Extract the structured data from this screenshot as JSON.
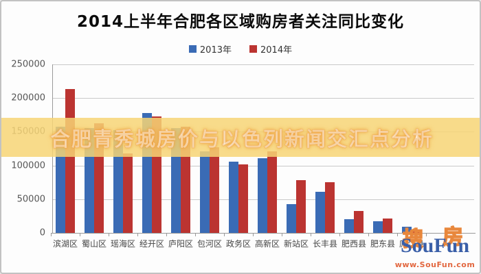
{
  "title": "2014上半年合肥各区域购房者关注同比变化",
  "overlay_banner": {
    "text": "合肥青秀城房价与以色列新闻交汇点分析"
  },
  "legend": {
    "items": [
      "2013年",
      "2014年"
    ]
  },
  "colors": {
    "series_2013": "#3a6bb5",
    "series_2014": "#bb3431",
    "banner_bg": "#f7d576",
    "banner_text": "#ffffff"
  },
  "watermark": {
    "cjk_left": "搜",
    "cjk_right": "房",
    "brand": "SouFun",
    "url": "www.SouFun.com"
  },
  "chart_data": {
    "type": "bar",
    "title": "2014上半年合肥各区域购房者关注同比变化",
    "categories": [
      "滨湖区",
      "蜀山区",
      "瑶海区",
      "经开区",
      "庐阳区",
      "包河区",
      "政务区",
      "高新区",
      "新站区",
      "长丰县",
      "肥西县",
      "肥东县",
      "庐江县"
    ],
    "series": [
      {
        "name": "2013年",
        "color": "#3a6bb5",
        "values": [
          158000,
          155000,
          152000,
          178000,
          155000,
          121000,
          106000,
          111000,
          43000,
          61000,
          20000,
          17000,
          9000
        ]
      },
      {
        "name": "2014年",
        "color": "#bb3431",
        "values": [
          213000,
          163000,
          118000,
          173000,
          158000,
          127000,
          102000,
          121000,
          78000,
          75000,
          33000,
          21000,
          5000
        ]
      }
    ],
    "xlabel": "",
    "ylabel": "",
    "ylim": [
      0,
      250000
    ],
    "yticks": [
      0,
      50000,
      100000,
      150000,
      200000,
      250000
    ],
    "grid": true,
    "legend_position": "top"
  }
}
